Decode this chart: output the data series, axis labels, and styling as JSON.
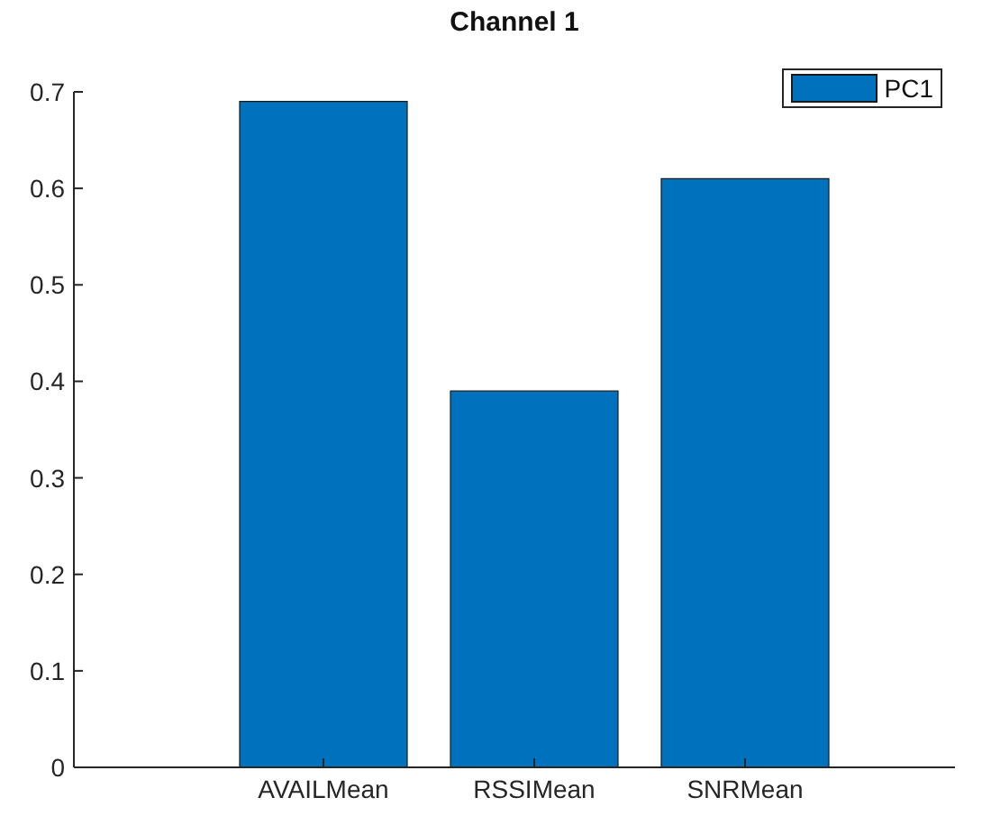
{
  "chart_data": {
    "type": "bar",
    "title": "Channel 1",
    "categories": [
      "AVAILMean",
      "RSSIMean",
      "SNRMean"
    ],
    "series": [
      {
        "name": "PC1",
        "color": "#0072bd",
        "values": [
          0.69,
          0.39,
          0.61
        ]
      }
    ],
    "ylim": [
      0,
      0.7
    ],
    "yticks": [
      0,
      0.1,
      0.2,
      0.3,
      0.4,
      0.5,
      0.6,
      0.7
    ],
    "grid": false,
    "legend": "top right"
  }
}
